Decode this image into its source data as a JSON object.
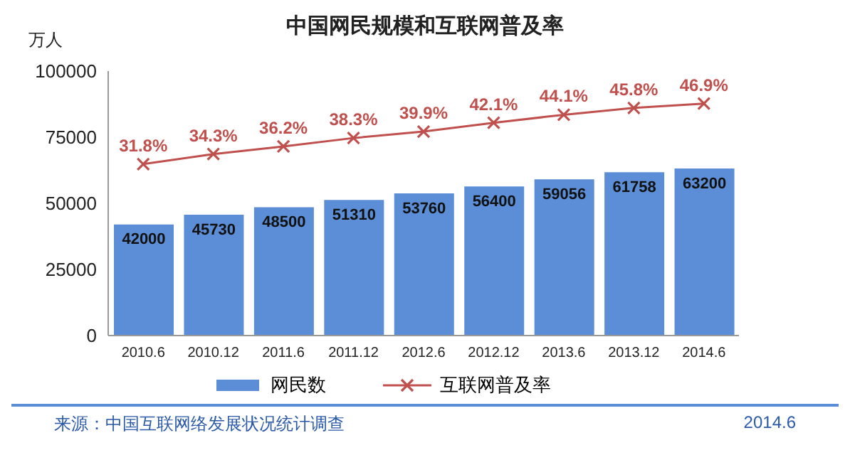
{
  "chart_data": {
    "type": "bar",
    "title": "中国网民规模和互联网普及率",
    "ylabel": "万人",
    "categories": [
      "2010.6",
      "2010.12",
      "2011.6",
      "2011.12",
      "2012.6",
      "2012.12",
      "2013.6",
      "2013.12",
      "2014.6"
    ],
    "series": [
      {
        "name": "网民数",
        "color": "#5b8ed6",
        "values": [
          42000,
          45730,
          48500,
          51310,
          53760,
          56400,
          59056,
          61758,
          63200
        ]
      },
      {
        "name": "互联网普及率",
        "type": "line",
        "axis": "y2",
        "color": "#c0504d",
        "values": [
          31.8,
          34.3,
          36.2,
          38.3,
          39.9,
          42.1,
          44.1,
          45.8,
          46.9
        ],
        "value_labels": [
          "31.8%",
          "34.3%",
          "36.2%",
          "38.3%",
          "39.9%",
          "42.1%",
          "44.1%",
          "45.8%",
          "46.9%"
        ]
      }
    ],
    "ylim": [
      0,
      100000
    ],
    "yticks": [
      0,
      25000,
      50000,
      75000,
      100000
    ],
    "y2lim": [
      -11,
      55
    ],
    "data_labels": true,
    "legend": "bottom",
    "marker": "cross",
    "grid": false,
    "annotations": [
      "来源：中国互联网络发展状况统计调查",
      "2014.6"
    ]
  }
}
